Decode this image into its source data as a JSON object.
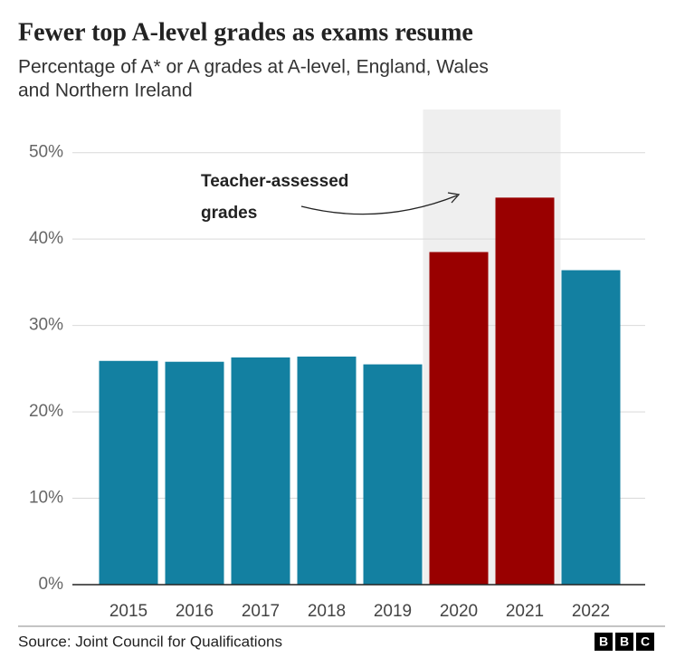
{
  "chart_data": {
    "type": "bar",
    "title": "Fewer top A-level grades as exams resume",
    "subtitle": [
      "Percentage of A* or A grades at A-level, England, Wales",
      "and Northern Ireland"
    ],
    "categories": [
      "2015",
      "2016",
      "2017",
      "2018",
      "2019",
      "2020",
      "2021",
      "2022"
    ],
    "values": [
      25.9,
      25.8,
      26.3,
      26.4,
      25.5,
      38.5,
      44.8,
      36.4
    ],
    "colors": [
      "#1380a1",
      "#1380a1",
      "#1380a1",
      "#1380a1",
      "#1380a1",
      "#990000",
      "#990000",
      "#1380a1"
    ],
    "highlight": [
      "2020",
      "2021"
    ],
    "highlight_color": "#efefef",
    "annotation": [
      "Teacher-assessed",
      "grades"
    ],
    "ylim": [
      0,
      55
    ],
    "yticks": [
      {
        "value": 0,
        "label": "0%"
      },
      {
        "value": 10,
        "label": "10%"
      },
      {
        "value": 20,
        "label": "20%"
      },
      {
        "value": 30,
        "label": "30%"
      },
      {
        "value": 40,
        "label": "40%"
      },
      {
        "value": 50,
        "label": "50%"
      }
    ],
    "grid": true,
    "source": "Source: Joint Council for Qualifications",
    "logo": [
      "B",
      "B",
      "C"
    ]
  }
}
